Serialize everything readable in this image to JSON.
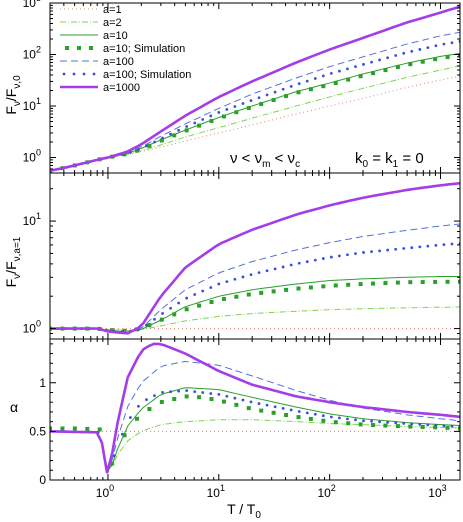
{
  "chart_data": [
    {
      "type": "line",
      "panel": "top",
      "ylabel_main": "F",
      "ylabel_sub1": "ν",
      "ylabel_mid": "/F",
      "ylabel_sub2": "ν,0",
      "yscale": "log",
      "xscale": "log",
      "xlim": [
        0.3,
        1500
      ],
      "ylim": [
        0.5,
        1000
      ],
      "yticks": [
        {
          "v": 1,
          "label": "10",
          "sup": "0"
        },
        {
          "v": 10,
          "label": "10",
          "sup": "1"
        },
        {
          "v": 100,
          "label": "10",
          "sup": "2"
        },
        {
          "v": 1000,
          "label": "10",
          "sup": "3"
        }
      ],
      "annotation": {
        "nu": "ν < ν",
        "m": "m",
        "lt": " < ν",
        "c": "c",
        "k": "k",
        "k0": "0",
        "eq": " = k",
        "k1": "1",
        "zero": " = 0"
      },
      "legend": [
        "a=1",
        "a=2",
        "a=10",
        "a=10; Simulation",
        "a=100",
        "a=100; Simulation",
        "a=1000"
      ],
      "series": [
        {
          "name": "a=1",
          "x": [
            0.3,
            0.5,
            0.8,
            1,
            1.5,
            2,
            3,
            5,
            10,
            20,
            50,
            100,
            200,
            500,
            1000,
            1500
          ],
          "y": [
            0.55,
            0.7,
            0.9,
            1.0,
            1.15,
            1.3,
            1.6,
            2.1,
            3.0,
            4.3,
            7.0,
            10,
            14,
            23,
            32,
            38
          ]
        },
        {
          "name": "a=2",
          "x": [
            0.3,
            0.5,
            0.8,
            1,
            1.5,
            2,
            3,
            5,
            10,
            20,
            50,
            100,
            200,
            500,
            1000,
            1500
          ],
          "y": [
            0.55,
            0.7,
            0.9,
            1.0,
            1.15,
            1.35,
            1.75,
            2.5,
            3.8,
            5.8,
            10,
            15,
            22,
            36,
            50,
            60
          ]
        },
        {
          "name": "a=10",
          "x": [
            0.3,
            0.5,
            0.8,
            1,
            1.5,
            2,
            3,
            5,
            10,
            20,
            50,
            100,
            200,
            500,
            1000,
            1500
          ],
          "y": [
            0.55,
            0.7,
            0.9,
            1.0,
            1.2,
            1.5,
            2.2,
            3.4,
            6.0,
            10,
            19,
            28,
            42,
            68,
            92,
            105
          ]
        },
        {
          "name": "a=10; Simulation",
          "x": [
            0.3,
            0.5,
            0.8,
            1,
            1.5,
            2,
            3,
            5,
            10,
            20,
            50,
            100,
            200,
            500,
            1000,
            1500
          ],
          "y": [
            0.55,
            0.7,
            0.9,
            1.0,
            1.18,
            1.45,
            2.1,
            3.3,
            5.8,
            9.6,
            18,
            26,
            39,
            63,
            85,
            97
          ]
        },
        {
          "name": "a=100",
          "x": [
            0.3,
            0.5,
            0.8,
            1,
            1.5,
            2,
            3,
            5,
            10,
            20,
            50,
            100,
            200,
            500,
            1000,
            1500
          ],
          "y": [
            0.55,
            0.7,
            0.9,
            1.0,
            1.25,
            1.6,
            2.6,
            4.5,
            9.0,
            17,
            35,
            58,
            90,
            160,
            230,
            270
          ]
        },
        {
          "name": "a=100; Simulation",
          "x": [
            0.3,
            0.5,
            0.8,
            1,
            1.5,
            2,
            3,
            5,
            10,
            20,
            50,
            100,
            200,
            500,
            1000,
            1500
          ],
          "y": [
            0.55,
            0.7,
            0.9,
            1.0,
            1.2,
            1.5,
            2.3,
            3.9,
            7.5,
            13,
            26,
            42,
            64,
            110,
            155,
            180
          ]
        },
        {
          "name": "a=1000",
          "x": [
            0.3,
            0.5,
            0.8,
            1,
            1.5,
            2,
            3,
            5,
            10,
            20,
            50,
            100,
            200,
            500,
            1000,
            1500
          ],
          "y": [
            0.55,
            0.7,
            0.9,
            1.0,
            1.3,
            1.8,
            3.2,
            6.5,
            15,
            30,
            70,
            125,
            210,
            420,
            650,
            850
          ]
        }
      ]
    },
    {
      "type": "line",
      "panel": "middle",
      "ylabel_main": "F",
      "ylabel_sub1": "ν",
      "ylabel_mid": "/F",
      "ylabel_sub2": "ν,a=1",
      "yscale": "log",
      "xscale": "log",
      "xlim": [
        0.3,
        1500
      ],
      "ylim": [
        0.8,
        28
      ],
      "yticks": [
        {
          "v": 1,
          "label": "10",
          "sup": "0"
        },
        {
          "v": 10,
          "label": "10",
          "sup": "1"
        }
      ],
      "series": [
        {
          "name": "a=1",
          "x": [
            0.3,
            1500
          ],
          "y": [
            1.0,
            1.0
          ]
        },
        {
          "name": "a=2",
          "x": [
            0.3,
            0.8,
            1,
            1.5,
            2,
            3,
            5,
            10,
            20,
            50,
            100,
            200,
            500,
            1000,
            1500
          ],
          "y": [
            1.0,
            1.0,
            0.98,
            0.96,
            0.98,
            1.06,
            1.18,
            1.3,
            1.38,
            1.45,
            1.5,
            1.53,
            1.56,
            1.58,
            1.59
          ]
        },
        {
          "name": "a=10",
          "x": [
            0.3,
            0.8,
            1,
            1.5,
            2,
            3,
            5,
            10,
            20,
            50,
            100,
            200,
            500,
            1000,
            1500
          ],
          "y": [
            1.0,
            1.0,
            0.96,
            0.93,
            0.98,
            1.2,
            1.6,
            2.0,
            2.3,
            2.6,
            2.8,
            2.9,
            3.0,
            3.05,
            3.05
          ]
        },
        {
          "name": "a=10; Simulation",
          "x": [
            0.3,
            0.8,
            1,
            1.5,
            2,
            3,
            5,
            10,
            20,
            50,
            100,
            200,
            500,
            1000,
            1500
          ],
          "y": [
            1.0,
            1.0,
            0.97,
            0.95,
            1.0,
            1.2,
            1.5,
            1.85,
            2.1,
            2.35,
            2.5,
            2.6,
            2.7,
            2.72,
            2.73
          ]
        },
        {
          "name": "a=100",
          "x": [
            0.3,
            0.8,
            1,
            1.5,
            2,
            3,
            5,
            10,
            20,
            50,
            100,
            200,
            500,
            1000,
            1500
          ],
          "y": [
            1.0,
            1.0,
            0.95,
            0.92,
            1.0,
            1.5,
            2.3,
            3.3,
            4.2,
            5.4,
            6.3,
            7.2,
            8.2,
            9.0,
            9.4
          ]
        },
        {
          "name": "a=100; Simulation",
          "x": [
            0.3,
            0.8,
            1,
            1.5,
            2,
            3,
            5,
            10,
            20,
            50,
            100,
            200,
            500,
            1000,
            1500
          ],
          "y": [
            1.0,
            1.0,
            0.96,
            0.93,
            0.99,
            1.35,
            1.9,
            2.6,
            3.2,
            4.0,
            4.6,
            5.1,
            5.6,
            6.0,
            6.2
          ]
        },
        {
          "name": "a=1000",
          "x": [
            0.3,
            0.8,
            1,
            1.5,
            2,
            3,
            5,
            10,
            20,
            50,
            100,
            200,
            500,
            1000,
            1500
          ],
          "y": [
            1.0,
            1.0,
            0.94,
            0.9,
            1.05,
            2.0,
            3.7,
            6.1,
            8.3,
            11.5,
            14.0,
            16.5,
            19.5,
            21.5,
            22.5
          ]
        }
      ]
    },
    {
      "type": "line",
      "panel": "bottom",
      "xlabel_main": "T / T",
      "xlabel_sub": "0",
      "ylabel": "α",
      "yscale": "linear",
      "xscale": "log",
      "xlim": [
        0.3,
        1500
      ],
      "ylim": [
        0,
        1.45
      ],
      "yticks": [
        {
          "v": 0,
          "label": "0"
        },
        {
          "v": 0.5,
          "label": "0.5"
        },
        {
          "v": 1,
          "label": "1"
        }
      ],
      "xticks": [
        {
          "v": 1,
          "label": "10",
          "sup": "0"
        },
        {
          "v": 10,
          "label": "10",
          "sup": "1"
        },
        {
          "v": 100,
          "label": "10",
          "sup": "2"
        },
        {
          "v": 1000,
          "label": "10",
          "sup": "3"
        }
      ],
      "series": [
        {
          "name": "a=1",
          "x": [
            0.3,
            0.8,
            1,
            1.2,
            1.5,
            2,
            3,
            5,
            10,
            20,
            50,
            100,
            200,
            500,
            1000,
            1500
          ],
          "y": [
            0.5,
            0.5,
            0.5,
            0.5,
            0.5,
            0.5,
            0.5,
            0.5,
            0.5,
            0.5,
            0.5,
            0.5,
            0.5,
            0.5,
            0.5,
            0.5
          ]
        },
        {
          "name": "a=2",
          "x": [
            0.3,
            0.85,
            1,
            1.2,
            1.5,
            2,
            3,
            5,
            10,
            20,
            50,
            100,
            200,
            500,
            1000,
            1500
          ],
          "y": [
            0.5,
            0.49,
            0.05,
            0.25,
            0.4,
            0.5,
            0.57,
            0.6,
            0.62,
            0.62,
            0.6,
            0.58,
            0.57,
            0.55,
            0.54,
            0.535
          ]
        },
        {
          "name": "a=10",
          "x": [
            0.3,
            0.85,
            1,
            1.2,
            1.5,
            2,
            3,
            5,
            10,
            20,
            50,
            100,
            200,
            500,
            1000,
            1500
          ],
          "y": [
            0.5,
            0.49,
            0.03,
            0.3,
            0.55,
            0.73,
            0.88,
            0.95,
            0.93,
            0.85,
            0.75,
            0.68,
            0.63,
            0.59,
            0.57,
            0.56
          ]
        },
        {
          "name": "a=10; Simulation",
          "x": [
            0.3,
            0.5,
            0.85,
            1,
            1.2,
            1.5,
            2,
            3,
            5,
            7,
            10,
            20,
            50,
            100,
            200,
            500,
            1000,
            1500
          ],
          "y": [
            0.53,
            0.53,
            0.52,
            0.05,
            0.3,
            0.52,
            0.68,
            0.8,
            0.86,
            0.85,
            0.82,
            0.73,
            0.65,
            0.6,
            0.57,
            0.55,
            0.54,
            0.53
          ]
        },
        {
          "name": "a=100",
          "x": [
            0.3,
            0.85,
            1,
            1.2,
            1.5,
            2,
            3,
            5,
            10,
            20,
            50,
            100,
            200,
            500,
            1000,
            1500
          ],
          "y": [
            0.5,
            0.49,
            0.03,
            0.4,
            0.75,
            1.0,
            1.17,
            1.22,
            1.18,
            1.07,
            0.92,
            0.82,
            0.74,
            0.67,
            0.63,
            0.61
          ]
        },
        {
          "name": "a=100; Simulation",
          "x": [
            0.3,
            0.85,
            1,
            1.2,
            1.5,
            2,
            3,
            5,
            10,
            20,
            50,
            100,
            200,
            500,
            1000,
            1500
          ],
          "y": [
            0.5,
            0.49,
            0.04,
            0.33,
            0.6,
            0.8,
            0.9,
            0.92,
            0.88,
            0.8,
            0.71,
            0.65,
            0.61,
            0.58,
            0.56,
            0.55
          ]
        },
        {
          "name": "a=1000",
          "x": [
            0.3,
            0.85,
            1,
            1.2,
            1.5,
            2,
            2.5,
            3,
            5,
            10,
            20,
            50,
            100,
            200,
            500,
            1000,
            1500
          ],
          "y": [
            0.5,
            0.49,
            0.02,
            0.55,
            1.05,
            1.33,
            1.4,
            1.4,
            1.3,
            1.12,
            0.98,
            0.86,
            0.8,
            0.75,
            0.7,
            0.67,
            0.65
          ]
        }
      ]
    }
  ]
}
